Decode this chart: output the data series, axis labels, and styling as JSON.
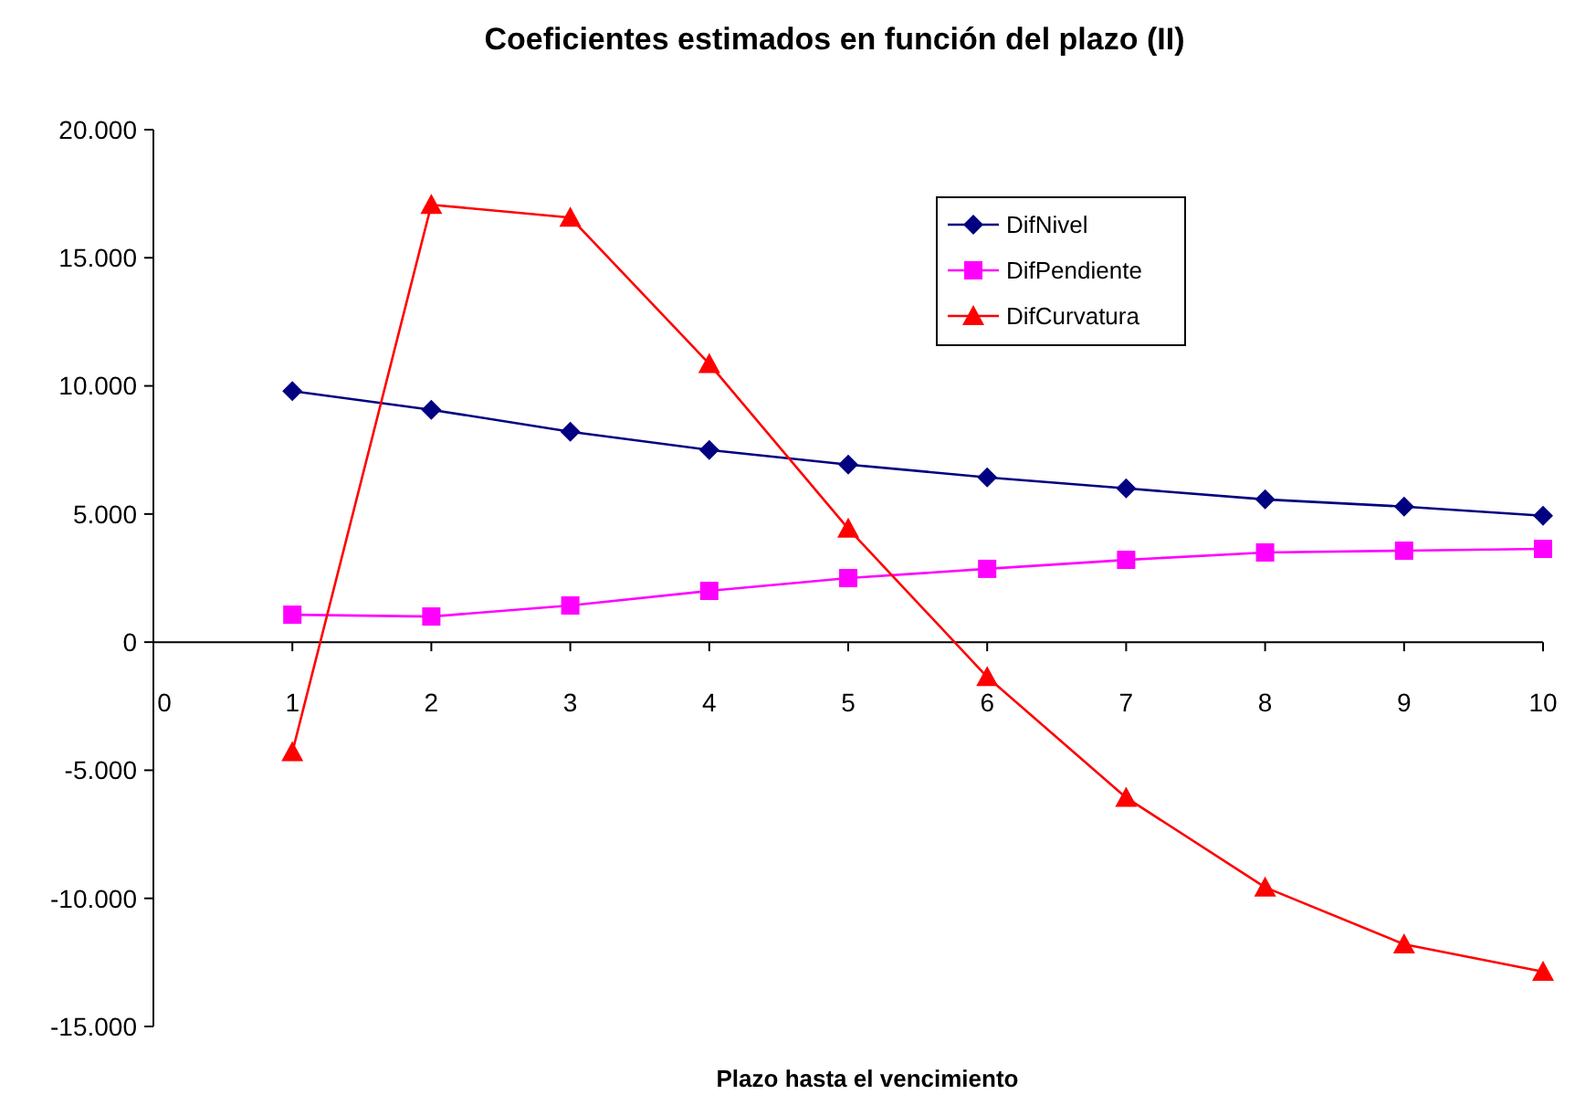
{
  "chart_data": {
    "type": "line",
    "title": "Coeficientes estimados en función del plazo (II)",
    "xlabel": "Plazo hasta el vencimiento",
    "x": [
      1,
      2,
      3,
      4,
      5,
      6,
      7,
      8,
      9,
      10
    ],
    "series": [
      {
        "name": "DifNivel",
        "color": "#000080",
        "marker": "diamond",
        "values": [
          9800,
          9070,
          8210,
          7500,
          6930,
          6430,
          6000,
          5570,
          5290,
          4930
        ]
      },
      {
        "name": "DifPendiente",
        "color": "#ff00ff",
        "marker": "square",
        "values": [
          1070,
          1000,
          1430,
          2000,
          2500,
          2860,
          3210,
          3500,
          3570,
          3640
        ]
      },
      {
        "name": "DifCurvatura",
        "color": "#ff0000",
        "marker": "triangle",
        "values": [
          -4290,
          17070,
          16570,
          10860,
          4430,
          -1360,
          -6070,
          -9570,
          -11790,
          -12860
        ]
      }
    ],
    "xlim": [
      0,
      10
    ],
    "xticks": [
      0,
      1,
      2,
      3,
      4,
      5,
      6,
      7,
      8,
      9,
      10
    ],
    "ylim": [
      -15000,
      20000
    ],
    "yticks": [
      {
        "value": -15000,
        "label": "-15.000"
      },
      {
        "value": -10000,
        "label": "-10.000"
      },
      {
        "value": -5000,
        "label": "-5.000"
      },
      {
        "value": 0,
        "label": "0"
      },
      {
        "value": 5000,
        "label": "5.000"
      },
      {
        "value": 10000,
        "label": "10.000"
      },
      {
        "value": 15000,
        "label": "15.000"
      },
      {
        "value": 20000,
        "label": "20.000"
      }
    ],
    "grid": false,
    "legend": "top right",
    "line_style": "solid"
  }
}
